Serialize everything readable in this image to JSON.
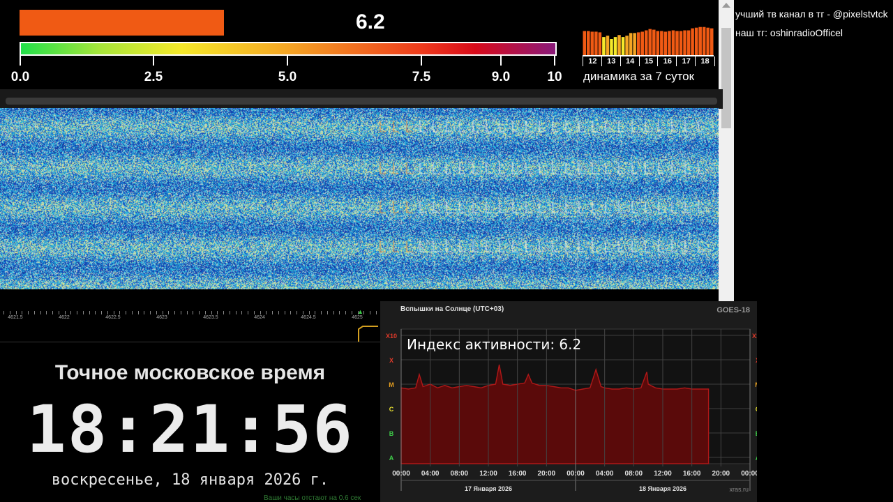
{
  "gauge": {
    "value": 6.2,
    "value_text": "6.2",
    "max": 10,
    "bar_color": "#f05a14",
    "ticks": [
      "0.0",
      "2.5",
      "5.0",
      "7.5",
      "9.0",
      "10"
    ]
  },
  "mini_history": {
    "days": [
      "12",
      "13",
      "14",
      "15",
      "16",
      "17",
      "18"
    ],
    "caption": "динамика за 7 суток",
    "values": [
      0.74,
      0.74,
      0.72,
      0.72,
      0.7,
      0.56,
      0.6,
      0.5,
      0.56,
      0.62,
      0.56,
      0.6,
      0.68,
      0.68,
      0.7,
      0.72,
      0.76,
      0.8,
      0.78,
      0.74,
      0.74,
      0.72,
      0.74,
      0.76,
      0.74,
      0.74,
      0.76,
      0.76,
      0.82,
      0.84,
      0.86,
      0.86,
      0.84,
      0.82
    ],
    "colors": [
      "#f05a14",
      "#f5a524",
      "#f5e82a"
    ]
  },
  "sidebar": {
    "line1": "учший тв канал в тг - @pixelstvtck",
    "line2": "наш тг: oshinradioOfficel"
  },
  "frequency_ruler": {
    "labels": [
      "4621.5",
      "4622",
      "4622.5",
      "4623",
      "4623.5",
      "4624",
      "4624.5",
      "4625"
    ]
  },
  "clock": {
    "title": "Точное московское время",
    "time": "18:21:56",
    "date": "воскресенье, 18 января 2026 г.",
    "offset_note": "Ваши часы отстают на 0.6 сек"
  },
  "solar_chart": {
    "title": "Вспышки на Солнце (UTC+03)",
    "source_tag": "GOES-18",
    "overlay": "Индекс активности: 6.2",
    "credit": "xras.ru",
    "classes": [
      {
        "label": "X10",
        "color": "#e03a2a"
      },
      {
        "label": "X",
        "color": "#e03a2a"
      },
      {
        "label": "M",
        "color": "#e8a020"
      },
      {
        "label": "C",
        "color": "#e8e030"
      },
      {
        "label": "B",
        "color": "#3fcf4a"
      },
      {
        "label": "A",
        "color": "#3fcf4a"
      }
    ],
    "time_labels": [
      "00:00",
      "04:00",
      "08:00",
      "12:00",
      "16:00",
      "20:00",
      "00:00",
      "04:00",
      "08:00",
      "12:00",
      "16:00",
      "20:00",
      "00:00"
    ],
    "day_labels": [
      "17 Января 2026",
      "18 Января 2026"
    ]
  },
  "chart_data": {
    "type": "area",
    "title": "Вспышки на Солнце (UTC+03)",
    "xlabel": "",
    "ylabel": "",
    "y_scale": "log-class",
    "y_categories": [
      "A",
      "B",
      "C",
      "M",
      "X",
      "X10"
    ],
    "series": [
      {
        "name": "GOES-18",
        "x_hours": [
          0,
          1,
          2,
          2.5,
          3,
          4,
          5,
          6,
          7,
          8,
          9,
          10,
          11,
          12,
          13,
          13.5,
          14,
          15,
          16,
          17,
          17.5,
          18,
          19,
          20,
          21,
          22,
          23,
          24,
          25,
          26,
          26.8,
          27.5,
          28,
          29,
          30,
          31,
          32,
          33,
          33.8,
          34,
          35,
          36,
          37,
          38,
          39,
          40,
          41,
          42.3
        ],
        "class_level": [
          2.85,
          2.8,
          2.85,
          3.4,
          2.9,
          3.0,
          2.85,
          2.95,
          2.85,
          2.9,
          2.95,
          2.9,
          2.85,
          2.95,
          3.0,
          3.8,
          3.0,
          2.95,
          3.0,
          3.05,
          3.4,
          3.05,
          2.95,
          2.95,
          2.9,
          2.85,
          2.85,
          2.75,
          2.8,
          2.85,
          3.6,
          2.9,
          2.85,
          2.8,
          2.8,
          2.85,
          2.8,
          2.85,
          3.5,
          3.0,
          2.85,
          2.8,
          2.8,
          2.8,
          2.85,
          2.8,
          2.8,
          2.8
        ]
      }
    ]
  }
}
